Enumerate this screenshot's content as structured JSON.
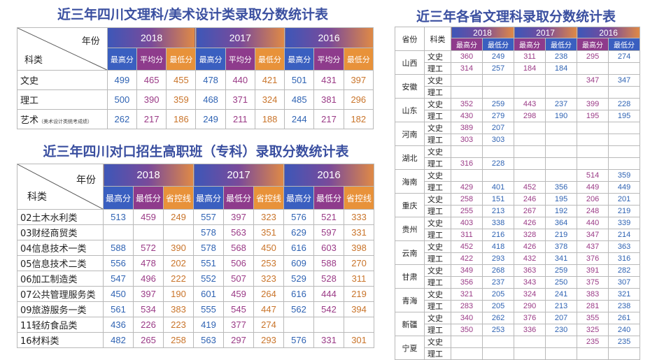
{
  "table1": {
    "title": "近三年四川文理科/美术设计类录取分数统计表",
    "diag_top": "年份",
    "diag_bottom": "科类",
    "years": [
      "2018",
      "2017",
      "2016"
    ],
    "subheads": [
      "最高分",
      "平均分",
      "最低分"
    ],
    "rows": [
      {
        "label": "文史",
        "values": [
          "499",
          "465",
          "455",
          "478",
          "440",
          "421",
          "501",
          "431",
          "397"
        ]
      },
      {
        "label": "理工",
        "values": [
          "500",
          "390",
          "359",
          "468",
          "371",
          "324",
          "485",
          "381",
          "296"
        ]
      },
      {
        "label": "艺术",
        "note": "（美术设计类统考成绩）",
        "values": [
          "262",
          "217",
          "186",
          "249",
          "211",
          "188",
          "244",
          "217",
          "182"
        ]
      }
    ]
  },
  "table2": {
    "title": "近三年四川对口招生高职班（专科）录取分数统计表",
    "diag_top": "年份",
    "diag_bottom": "科类",
    "years": [
      "2018",
      "2017",
      "2016"
    ],
    "subheads": [
      "最高分",
      "最低分",
      "省控线"
    ],
    "rows": [
      {
        "label": "02土木水利类",
        "values": [
          "513",
          "459",
          "249",
          "557",
          "397",
          "323",
          "576",
          "521",
          "333"
        ]
      },
      {
        "label": "03财经商贸类",
        "values": [
          "",
          "",
          "",
          "578",
          "563",
          "351",
          "629",
          "597",
          "331"
        ]
      },
      {
        "label": "04信息技术一类",
        "values": [
          "588",
          "572",
          "390",
          "578",
          "568",
          "450",
          "616",
          "603",
          "398"
        ]
      },
      {
        "label": "05信息技术二类",
        "values": [
          "556",
          "478",
          "202",
          "551",
          "506",
          "253",
          "609",
          "588",
          "270"
        ]
      },
      {
        "label": "06加工制造类",
        "values": [
          "547",
          "496",
          "222",
          "552",
          "507",
          "323",
          "529",
          "528",
          "311"
        ]
      },
      {
        "label": "07公共管理服务类",
        "values": [
          "450",
          "397",
          "190",
          "601",
          "459",
          "264",
          "616",
          "444",
          "219"
        ]
      },
      {
        "label": "09旅游服务一类",
        "values": [
          "561",
          "534",
          "383",
          "555",
          "545",
          "447",
          "562",
          "542",
          "394"
        ]
      },
      {
        "label": "11轻纺食品类",
        "values": [
          "436",
          "226",
          "223",
          "419",
          "377",
          "274",
          "",
          "",
          ""
        ]
      },
      {
        "label": "16材料类",
        "values": [
          "482",
          "265",
          "258",
          "563",
          "297",
          "293",
          "576",
          "331",
          "301"
        ]
      }
    ]
  },
  "table3": {
    "title": "近三年各省文理科录取分数统计表",
    "h_province": "省份",
    "h_type": "科类",
    "years": [
      "2018",
      "2017",
      "2016"
    ],
    "subheads": [
      "最高分",
      "最低分"
    ],
    "provinces": [
      {
        "name": "山西",
        "rows": [
          {
            "type": "文史",
            "values": [
              "360",
              "249",
              "311",
              "238",
              "295",
              "274"
            ]
          },
          {
            "type": "理工",
            "values": [
              "314",
              "257",
              "184",
              "184",
              "",
              ""
            ]
          }
        ]
      },
      {
        "name": "安徽",
        "rows": [
          {
            "type": "文史",
            "values": [
              "",
              "",
              "",
              "",
              "347",
              "347"
            ]
          },
          {
            "type": "理工",
            "values": [
              "",
              "",
              "",
              "",
              "",
              ""
            ]
          }
        ]
      },
      {
        "name": "山东",
        "rows": [
          {
            "type": "文史",
            "values": [
              "352",
              "259",
              "443",
              "237",
              "399",
              "228"
            ]
          },
          {
            "type": "理工",
            "values": [
              "430",
              "279",
              "298",
              "190",
              "195",
              "195"
            ]
          }
        ]
      },
      {
        "name": "河南",
        "rows": [
          {
            "type": "文史",
            "values": [
              "389",
              "207",
              "",
              "",
              "",
              ""
            ]
          },
          {
            "type": "理工",
            "values": [
              "303",
              "303",
              "",
              "",
              "",
              ""
            ]
          }
        ]
      },
      {
        "name": "湖北",
        "rows": [
          {
            "type": "文史",
            "values": [
              "",
              "",
              "",
              "",
              "",
              ""
            ]
          },
          {
            "type": "理工",
            "values": [
              "316",
              "228",
              "",
              "",
              "",
              ""
            ]
          }
        ]
      },
      {
        "name": "海南",
        "rows": [
          {
            "type": "文史",
            "values": [
              "",
              "",
              "",
              "",
              "514",
              "359"
            ]
          },
          {
            "type": "理工",
            "values": [
              "429",
              "401",
              "452",
              "356",
              "449",
              "449"
            ]
          }
        ]
      },
      {
        "name": "重庆",
        "rows": [
          {
            "type": "文史",
            "values": [
              "258",
              "151",
              "246",
              "195",
              "206",
              "201"
            ]
          },
          {
            "type": "理工",
            "values": [
              "255",
              "213",
              "267",
              "192",
              "248",
              "219"
            ]
          }
        ]
      },
      {
        "name": "贵州",
        "rows": [
          {
            "type": "文史",
            "values": [
              "403",
              "338",
              "426",
              "364",
              "440",
              "339"
            ]
          },
          {
            "type": "理工",
            "values": [
              "311",
              "216",
              "328",
              "219",
              "347",
              "214"
            ]
          }
        ]
      },
      {
        "name": "云南",
        "rows": [
          {
            "type": "文史",
            "values": [
              "452",
              "418",
              "426",
              "378",
              "437",
              "363"
            ]
          },
          {
            "type": "理工",
            "values": [
              "422",
              "293",
              "432",
              "341",
              "376",
              "316"
            ]
          }
        ]
      },
      {
        "name": "甘肃",
        "rows": [
          {
            "type": "文史",
            "values": [
              "349",
              "268",
              "363",
              "259",
              "391",
              "282"
            ]
          },
          {
            "type": "理工",
            "values": [
              "356",
              "237",
              "343",
              "250",
              "375",
              "307"
            ]
          }
        ]
      },
      {
        "name": "青海",
        "rows": [
          {
            "type": "文史",
            "values": [
              "321",
              "205",
              "324",
              "241",
              "383",
              "321"
            ]
          },
          {
            "type": "理工",
            "values": [
              "283",
              "205",
              "290",
              "213",
              "281",
              "238"
            ]
          }
        ]
      },
      {
        "name": "新疆",
        "rows": [
          {
            "type": "文史",
            "values": [
              "340",
              "262",
              "376",
              "207",
              "355",
              "261"
            ]
          },
          {
            "type": "理工",
            "values": [
              "350",
              "253",
              "336",
              "230",
              "325",
              "240"
            ]
          }
        ]
      },
      {
        "name": "宁夏",
        "rows": [
          {
            "type": "文史",
            "values": [
              "",
              "",
              "",
              "",
              "235",
              "235"
            ]
          },
          {
            "type": "理工",
            "values": [
              "",
              "",
              "",
              "",
              "",
              ""
            ]
          }
        ]
      }
    ]
  }
}
